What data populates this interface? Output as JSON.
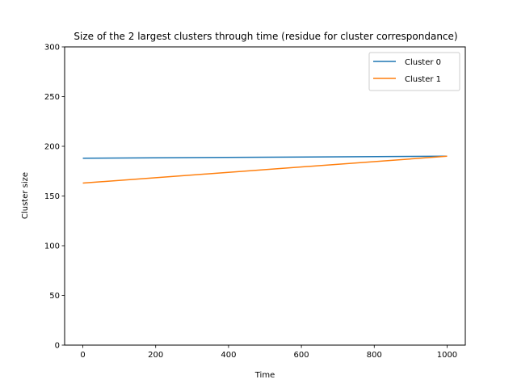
{
  "chart_data": {
    "type": "line",
    "title": "Size of the 2 largest clusters through time (residue for cluster correspondance)",
    "xlabel": "Time",
    "ylabel": "Cluster size",
    "xlim": [
      -50,
      1050
    ],
    "ylim": [
      0,
      300
    ],
    "xticks": [
      0,
      200,
      400,
      600,
      800,
      1000
    ],
    "yticks": [
      0,
      50,
      100,
      150,
      200,
      250,
      300
    ],
    "xtick_labels": [
      "0",
      "200",
      "400",
      "600",
      "800",
      "1000"
    ],
    "ytick_labels": [
      "0",
      "50",
      "100",
      "150",
      "200",
      "250",
      "300"
    ],
    "grid": false,
    "legend_position": "upper-right",
    "series": [
      {
        "name": "Cluster 0",
        "color": "#1f77b4",
        "x": [
          0,
          1000
        ],
        "y": [
          188,
          190
        ]
      },
      {
        "name": "Cluster 1",
        "color": "#ff7f0e",
        "x": [
          0,
          1000
        ],
        "y": [
          163,
          190
        ]
      }
    ]
  }
}
